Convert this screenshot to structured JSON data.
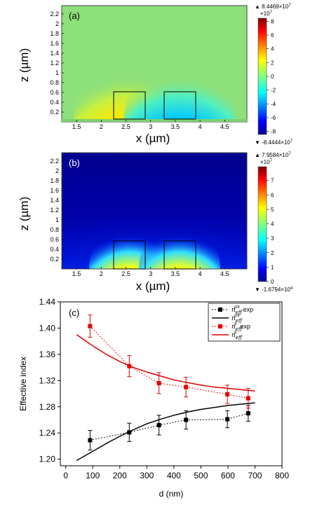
{
  "panels": [
    {
      "label": "(a)",
      "xlabel": "x (µm)",
      "ylabel": "z (µm)",
      "x_ticks": [
        "1.5",
        "2",
        "2.5",
        "3",
        "3.5",
        "4",
        "4.5"
      ],
      "y_ticks": [
        "0.2",
        "0.4",
        "0.6",
        "0.8",
        "1",
        "1.2",
        "1.4",
        "1.6",
        "1.8",
        "2",
        "2.2"
      ],
      "colorbar_max": "8.4469×10",
      "colorbar_min": "-8.4444×10",
      "exponent": "7",
      "colorbar_scale": "×10",
      "colorbar_ticks": [
        "8",
        "6",
        "4",
        "2",
        "0",
        "-2",
        "-4",
        "-6",
        "-8"
      ],
      "colors": {
        "background": "#8ee07a",
        "positive": "#cc0000",
        "negative": "#00008f"
      }
    },
    {
      "label": "(b)",
      "xlabel": "x (µm)",
      "ylabel": "z (µm)",
      "x_ticks": [
        "1.5",
        "2",
        "2.5",
        "3",
        "3.5",
        "4",
        "4.5"
      ],
      "y_ticks": [
        "0.2",
        "0.4",
        "0.6",
        "0.8",
        "1",
        "1.2",
        "1.4",
        "1.6",
        "1.8",
        "2",
        "2.2"
      ],
      "colorbar_max": "7.9584×10",
      "max_exponent": "7",
      "colorbar_min": "-1.6794×10",
      "min_exponent": "4",
      "colorbar_scale": "×10",
      "scale_exponent": "7",
      "colorbar_ticks": [
        "7",
        "6",
        "5",
        "4",
        "3",
        "2",
        "1",
        "0"
      ],
      "colors": {
        "background": "#00008f",
        "peak": "#cc0000"
      }
    }
  ],
  "chart_data": {
    "type": "line",
    "label": "(c)",
    "xlabel": "d (nm)",
    "ylabel": "Effective index",
    "xlim": [
      -20,
      800
    ],
    "ylim": [
      1.19,
      1.44
    ],
    "x_ticks": [
      0,
      100,
      200,
      300,
      400,
      500,
      600,
      700,
      800
    ],
    "y_ticks": [
      1.2,
      1.24,
      1.28,
      1.32,
      1.36,
      1.4,
      1.44
    ],
    "legend_position": "top-right",
    "series": [
      {
        "name": "exp",
        "legend_symbol": "n_eff^as",
        "color": "#000000",
        "style": "dotted-markers",
        "x": [
          90,
          235,
          345,
          445,
          598,
          675
        ],
        "y": [
          1.229,
          1.241,
          1.252,
          1.26,
          1.261,
          1.27
        ],
        "err": [
          0.015,
          0.014,
          0.015,
          0.014,
          0.013,
          0.012
        ]
      },
      {
        "name": "",
        "legend_symbol": "n_eff^as",
        "color": "#000000",
        "style": "solid",
        "x": [
          40,
          100,
          150,
          200,
          250,
          300,
          350,
          400,
          450,
          500,
          550,
          600,
          650,
          700
        ],
        "y": [
          1.198,
          1.212,
          1.224,
          1.235,
          1.245,
          1.254,
          1.261,
          1.267,
          1.272,
          1.276,
          1.279,
          1.282,
          1.284,
          1.286
        ]
      },
      {
        "name": "exp",
        "legend_symbol": "n_eff^s",
        "color": "#e00000",
        "style": "dotted-markers",
        "x": [
          90,
          235,
          345,
          445,
          598,
          675
        ],
        "y": [
          1.403,
          1.342,
          1.316,
          1.31,
          1.299,
          1.293
        ],
        "err": [
          0.017,
          0.016,
          0.016,
          0.015,
          0.014,
          0.015
        ]
      },
      {
        "name": "",
        "legend_symbol": "n_eff^s",
        "color": "#e00000",
        "style": "solid",
        "x": [
          40,
          100,
          150,
          200,
          250,
          300,
          350,
          400,
          450,
          500,
          550,
          600,
          650,
          700
        ],
        "y": [
          1.39,
          1.373,
          1.36,
          1.349,
          1.34,
          1.333,
          1.327,
          1.321,
          1.317,
          1.313,
          1.31,
          1.308,
          1.306,
          1.304
        ]
      }
    ]
  }
}
